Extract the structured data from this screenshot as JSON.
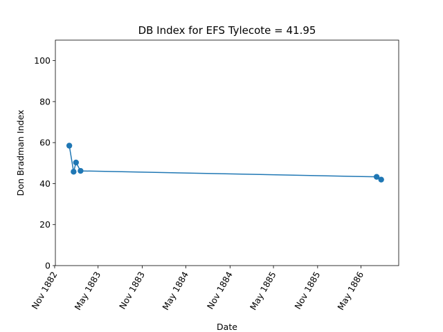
{
  "chart_data": {
    "type": "line",
    "title": "DB Index for EFS Tylecote = 41.95",
    "xlabel": "Date",
    "ylabel": "Don Bradman Index",
    "ylim": [
      0,
      110
    ],
    "xlim": [
      "1882-11-04",
      "1886-10-05"
    ],
    "x_ticks": [
      "1882-11-01",
      "1883-05-01",
      "1883-11-01",
      "1884-05-01",
      "1884-11-01",
      "1885-05-01",
      "1885-11-01",
      "1886-05-01"
    ],
    "x_tick_labels": [
      "Nov 1882",
      "May 1883",
      "Nov 1883",
      "May 1884",
      "Nov 1884",
      "May 1885",
      "Nov 1885",
      "May 1886"
    ],
    "y_ticks": [
      0,
      20,
      40,
      60,
      80,
      100
    ],
    "y_tick_labels": [
      "0",
      "20",
      "40",
      "60",
      "80",
      "100"
    ],
    "grid": false,
    "color": "#1f77b4",
    "series": [
      {
        "x": [
          "1883-01-01",
          "1883-01-19",
          "1883-01-29",
          "1883-02-17",
          "1886-07-05",
          "1886-07-24"
        ],
        "y": [
          58.5,
          45.8,
          50.3,
          46.2,
          43.3,
          41.95
        ]
      }
    ]
  }
}
